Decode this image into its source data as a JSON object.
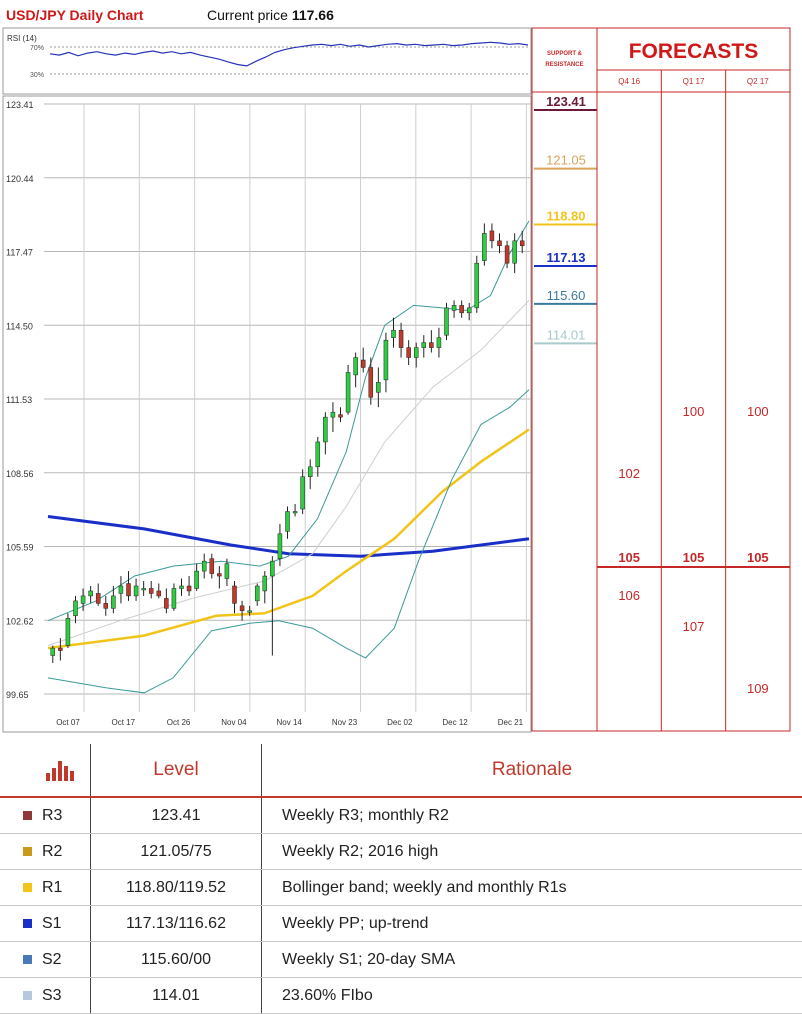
{
  "header": {
    "title": "USD/JPY Daily Chart",
    "price_label": "Current price",
    "price_value": "117.66"
  },
  "rsi": {
    "label": "RSI (14)",
    "level_high": "70%",
    "level_low": "30%",
    "values": [
      60,
      58,
      62,
      57,
      61,
      63,
      60,
      58,
      61,
      59,
      62,
      64,
      61,
      63,
      60,
      62,
      58,
      55,
      52,
      48,
      44,
      42,
      49,
      55,
      62,
      66,
      69,
      71,
      73,
      74,
      72,
      74,
      71,
      73,
      70,
      72,
      74,
      75,
      73,
      74,
      72,
      73,
      74,
      72,
      73,
      75,
      76,
      77,
      76,
      74,
      75,
      73
    ]
  },
  "chart_data": {
    "type": "line",
    "title": "USD/JPY Daily Chart",
    "ylim": [
      99.65,
      124.0
    ],
    "y_ticks": [
      "123.41",
      "120.44",
      "117.47",
      "114.50",
      "111.53",
      "108.56",
      "105.59",
      "102.62",
      "99.65"
    ],
    "x_ticks": [
      "Oct 07",
      "Oct 17",
      "Oct 26",
      "Nov 04",
      "Nov 14",
      "Nov 23",
      "Dec 02",
      "Dec 12",
      "Dec 21"
    ],
    "candles": [
      {
        "o": 101.2,
        "h": 101.6,
        "l": 100.9,
        "c": 101.5
      },
      {
        "o": 101.5,
        "h": 101.9,
        "l": 101.0,
        "c": 101.4
      },
      {
        "o": 101.6,
        "h": 102.9,
        "l": 101.5,
        "c": 102.7
      },
      {
        "o": 102.8,
        "h": 103.6,
        "l": 102.5,
        "c": 103.4
      },
      {
        "o": 103.3,
        "h": 103.9,
        "l": 103.0,
        "c": 103.6
      },
      {
        "o": 103.6,
        "h": 104.0,
        "l": 103.3,
        "c": 103.8
      },
      {
        "o": 103.7,
        "h": 104.1,
        "l": 103.2,
        "c": 103.3
      },
      {
        "o": 103.3,
        "h": 103.6,
        "l": 102.8,
        "c": 103.1
      },
      {
        "o": 103.1,
        "h": 104.0,
        "l": 102.9,
        "c": 103.6
      },
      {
        "o": 103.7,
        "h": 104.4,
        "l": 103.3,
        "c": 104.0
      },
      {
        "o": 104.1,
        "h": 104.6,
        "l": 103.4,
        "c": 103.6
      },
      {
        "o": 103.6,
        "h": 104.3,
        "l": 103.4,
        "c": 104.0
      },
      {
        "o": 103.9,
        "h": 104.2,
        "l": 103.6,
        "c": 103.9
      },
      {
        "o": 103.9,
        "h": 104.2,
        "l": 103.5,
        "c": 103.7
      },
      {
        "o": 103.8,
        "h": 104.1,
        "l": 103.5,
        "c": 103.6
      },
      {
        "o": 103.5,
        "h": 103.9,
        "l": 102.9,
        "c": 103.1
      },
      {
        "o": 103.1,
        "h": 104.1,
        "l": 103.0,
        "c": 103.9
      },
      {
        "o": 103.9,
        "h": 104.3,
        "l": 103.6,
        "c": 104.0
      },
      {
        "o": 104.0,
        "h": 104.4,
        "l": 103.6,
        "c": 103.8
      },
      {
        "o": 103.9,
        "h": 104.9,
        "l": 103.8,
        "c": 104.6
      },
      {
        "o": 104.6,
        "h": 105.3,
        "l": 104.3,
        "c": 105.0
      },
      {
        "o": 105.1,
        "h": 105.3,
        "l": 104.3,
        "c": 104.5
      },
      {
        "o": 104.5,
        "h": 104.8,
        "l": 103.9,
        "c": 104.4
      },
      {
        "o": 104.3,
        "h": 105.1,
        "l": 104.0,
        "c": 104.9
      },
      {
        "o": 104.0,
        "h": 104.2,
        "l": 102.9,
        "c": 103.3
      },
      {
        "o": 103.2,
        "h": 103.4,
        "l": 102.6,
        "c": 103.0
      },
      {
        "o": 103.0,
        "h": 103.2,
        "l": 102.8,
        "c": 103.0
      },
      {
        "o": 103.4,
        "h": 104.1,
        "l": 103.2,
        "c": 104.0
      },
      {
        "o": 103.8,
        "h": 104.6,
        "l": 103.3,
        "c": 104.4
      },
      {
        "o": 104.4,
        "h": 105.2,
        "l": 101.2,
        "c": 105.0
      },
      {
        "o": 105.1,
        "h": 106.5,
        "l": 104.8,
        "c": 106.1
      },
      {
        "o": 106.2,
        "h": 107.2,
        "l": 105.9,
        "c": 107.0
      },
      {
        "o": 107.0,
        "h": 107.3,
        "l": 106.8,
        "c": 107.0
      },
      {
        "o": 107.1,
        "h": 108.7,
        "l": 106.9,
        "c": 108.4
      },
      {
        "o": 108.4,
        "h": 109.1,
        "l": 107.9,
        "c": 108.8
      },
      {
        "o": 108.8,
        "h": 110.0,
        "l": 108.4,
        "c": 109.8
      },
      {
        "o": 109.8,
        "h": 111.0,
        "l": 109.3,
        "c": 110.8
      },
      {
        "o": 110.8,
        "h": 111.4,
        "l": 110.2,
        "c": 111.0
      },
      {
        "o": 110.9,
        "h": 111.2,
        "l": 110.6,
        "c": 110.8
      },
      {
        "o": 111.0,
        "h": 112.9,
        "l": 110.9,
        "c": 112.6
      },
      {
        "o": 112.5,
        "h": 113.4,
        "l": 112.0,
        "c": 113.2
      },
      {
        "o": 113.1,
        "h": 113.6,
        "l": 112.6,
        "c": 112.8
      },
      {
        "o": 112.8,
        "h": 113.2,
        "l": 111.3,
        "c": 111.6
      },
      {
        "o": 111.8,
        "h": 112.8,
        "l": 111.2,
        "c": 112.2
      },
      {
        "o": 112.3,
        "h": 114.2,
        "l": 111.8,
        "c": 113.9
      },
      {
        "o": 114.0,
        "h": 114.8,
        "l": 113.6,
        "c": 114.3
      },
      {
        "o": 114.3,
        "h": 114.6,
        "l": 113.2,
        "c": 113.6
      },
      {
        "o": 113.6,
        "h": 113.9,
        "l": 112.9,
        "c": 113.2
      },
      {
        "o": 113.2,
        "h": 113.8,
        "l": 112.8,
        "c": 113.6
      },
      {
        "o": 113.6,
        "h": 114.1,
        "l": 113.2,
        "c": 113.8
      },
      {
        "o": 113.8,
        "h": 114.3,
        "l": 113.4,
        "c": 113.6
      },
      {
        "o": 113.6,
        "h": 114.4,
        "l": 113.2,
        "c": 114.0
      },
      {
        "o": 114.1,
        "h": 115.4,
        "l": 113.9,
        "c": 115.2
      },
      {
        "o": 115.1,
        "h": 115.5,
        "l": 114.8,
        "c": 115.3
      },
      {
        "o": 115.3,
        "h": 115.5,
        "l": 114.8,
        "c": 115.0
      },
      {
        "o": 115.0,
        "h": 115.4,
        "l": 114.7,
        "c": 115.2
      },
      {
        "o": 115.2,
        "h": 117.3,
        "l": 115.0,
        "c": 117.0
      },
      {
        "o": 117.1,
        "h": 118.6,
        "l": 116.9,
        "c": 118.2
      },
      {
        "o": 118.3,
        "h": 118.6,
        "l": 117.6,
        "c": 117.9
      },
      {
        "o": 117.9,
        "h": 118.2,
        "l": 117.4,
        "c": 117.7
      },
      {
        "o": 117.7,
        "h": 117.9,
        "l": 116.8,
        "c": 117.0
      },
      {
        "o": 117.0,
        "h": 118.2,
        "l": 116.6,
        "c": 117.9
      },
      {
        "o": 117.9,
        "h": 118.3,
        "l": 117.4,
        "c": 117.7
      }
    ],
    "series": [
      {
        "name": "",
        "color": "#1a2ec8",
        "values": [
          [
            0,
            106.8
          ],
          [
            0.2,
            106.3
          ],
          [
            0.38,
            105.65
          ],
          [
            0.5,
            105.3
          ],
          [
            0.65,
            105.2
          ],
          [
            0.8,
            105.4
          ],
          [
            1,
            105.9
          ]
        ]
      },
      {
        "name": "",
        "color": "#f0c419",
        "values": [
          [
            0,
            101.5
          ],
          [
            0.2,
            102.0
          ],
          [
            0.35,
            102.8
          ],
          [
            0.45,
            102.9
          ],
          [
            0.55,
            103.6
          ],
          [
            0.62,
            104.6
          ],
          [
            0.72,
            105.9
          ],
          [
            0.82,
            107.8
          ],
          [
            0.9,
            109.0
          ],
          [
            1,
            110.3
          ]
        ]
      },
      {
        "name": "",
        "color": "#3a9a96",
        "values": [
          [
            0,
            100.3
          ],
          [
            0.12,
            99.9
          ],
          [
            0.2,
            99.7
          ],
          [
            0.26,
            100.3
          ],
          [
            0.34,
            102.2
          ],
          [
            0.42,
            102.5
          ],
          [
            0.48,
            102.6
          ],
          [
            0.55,
            102.3
          ],
          [
            0.62,
            101.5
          ],
          [
            0.66,
            101.1
          ],
          [
            0.72,
            102.3
          ],
          [
            0.77,
            105.0
          ],
          [
            0.84,
            108.3
          ],
          [
            0.9,
            110.5
          ],
          [
            0.96,
            111.2
          ],
          [
            1,
            111.9
          ]
        ]
      },
      {
        "name": "",
        "color": "#3a9a96",
        "values": [
          [
            0,
            102.6
          ],
          [
            0.1,
            103.4
          ],
          [
            0.18,
            104.4
          ],
          [
            0.26,
            104.8
          ],
          [
            0.36,
            105.0
          ],
          [
            0.44,
            104.8
          ],
          [
            0.5,
            105.2
          ],
          [
            0.56,
            106.7
          ],
          [
            0.62,
            109.4
          ],
          [
            0.66,
            112.4
          ],
          [
            0.7,
            114.5
          ],
          [
            0.76,
            115.3
          ],
          [
            0.82,
            115.2
          ],
          [
            0.87,
            115.1
          ],
          [
            0.92,
            115.7
          ],
          [
            0.96,
            117.4
          ],
          [
            1,
            118.7
          ]
        ]
      },
      {
        "name": "",
        "color": "#cfcfcf",
        "values": [
          [
            0,
            101.6
          ],
          [
            0.15,
            102.6
          ],
          [
            0.3,
            103.5
          ],
          [
            0.45,
            104.2
          ],
          [
            0.55,
            105.3
          ],
          [
            0.62,
            107.2
          ],
          [
            0.7,
            109.8
          ],
          [
            0.8,
            112.0
          ],
          [
            0.9,
            113.5
          ],
          [
            1,
            115.5
          ]
        ]
      }
    ]
  },
  "sr_panel": {
    "title": "SUPPORT & RESISTANCE",
    "levels": [
      {
        "value": "123.41",
        "y": 123.41,
        "color": "#6b1a3a"
      },
      {
        "value": "121.05",
        "y": 121.05,
        "color": "#d9a35e"
      },
      {
        "value": "118.80",
        "y": 118.8,
        "color": "#f2c41c"
      },
      {
        "value": "117.13",
        "y": 117.13,
        "color": "#1a2ec8"
      },
      {
        "value": "115.60",
        "y": 115.6,
        "color": "#3b7a9e"
      },
      {
        "value": "114.01",
        "y": 114.01,
        "color": "#a9c9cc"
      }
    ]
  },
  "forecasts": {
    "title": "FORECASTS",
    "columns": [
      {
        "label": "Q4 16",
        "high": "106",
        "median": "105",
        "low": "102",
        "h": 106,
        "m": 105,
        "l": 102
      },
      {
        "label": "Q1 17",
        "high": "107",
        "median": "105",
        "low": "100",
        "h": 107,
        "m": 105,
        "l": 100
      },
      {
        "label": "Q2 17",
        "high": "109",
        "median": "105",
        "low": "100",
        "h": 109,
        "m": 105,
        "l": 100
      }
    ]
  },
  "table": {
    "headers": [
      "Level",
      "Rationale"
    ],
    "rows": [
      {
        "code": "R3",
        "color": "#8e3a3a",
        "level": "123.41",
        "rationale": "Weekly R3; monthly R2"
      },
      {
        "code": "R2",
        "color": "#c89a1c",
        "level": "121.05/75",
        "rationale": "Weekly R2; 2016 high"
      },
      {
        "code": "R1",
        "color": "#f2c41c",
        "level": "118.80/119.52",
        "rationale": "Bollinger band; weekly and monthly R1s"
      },
      {
        "code": "S1",
        "color": "#1a2ec8",
        "level": "117.13/116.62",
        "rationale": "Weekly PP; up-trend"
      },
      {
        "code": "S2",
        "color": "#4a78b8",
        "level": "115.60/00",
        "rationale": "Weekly S1; 20-day SMA"
      },
      {
        "code": "S3",
        "color": "#b8c8dc",
        "level": "114.01",
        "rationale": "23.60% FIbo"
      }
    ]
  }
}
